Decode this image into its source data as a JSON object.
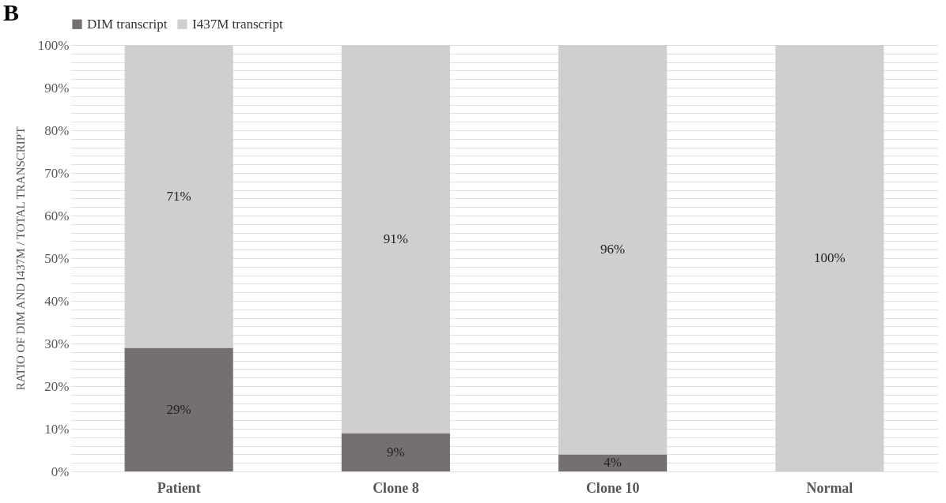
{
  "chart_data": {
    "type": "bar",
    "stacked": true,
    "ylabel": "RATIO OF DIM AND I437M / TOTAL TRANSCRIPT",
    "annotations": [
      "B"
    ],
    "categories": [
      "Patient",
      "Clone 8",
      "Clone 10",
      "Normal"
    ],
    "series": [
      {
        "name": "DIM transcript",
        "color": "#757070",
        "values": [
          29,
          9,
          4,
          0
        ],
        "value_labels": [
          "29%",
          "9%",
          "4%",
          null
        ]
      },
      {
        "name": "I437M transcript",
        "color": "#d0cece",
        "values": [
          71,
          91,
          96,
          100
        ],
        "value_labels": [
          "71%",
          "91%",
          "96%",
          "100%"
        ]
      }
    ],
    "ylim": [
      0,
      100
    ],
    "yticks": [
      {
        "value": 0,
        "label": "0%"
      },
      {
        "value": 2,
        "label": null
      },
      {
        "value": 4,
        "label": null
      },
      {
        "value": 6,
        "label": null
      },
      {
        "value": 8,
        "label": null
      },
      {
        "value": 10,
        "label": "10%"
      },
      {
        "value": 12,
        "label": null
      },
      {
        "value": 14,
        "label": null
      },
      {
        "value": 16,
        "label": null
      },
      {
        "value": 18,
        "label": null
      },
      {
        "value": 20,
        "label": "20%"
      },
      {
        "value": 22,
        "label": null
      },
      {
        "value": 24,
        "label": null
      },
      {
        "value": 26,
        "label": null
      },
      {
        "value": 28,
        "label": null
      },
      {
        "value": 30,
        "label": "30%"
      },
      {
        "value": 32,
        "label": null
      },
      {
        "value": 34,
        "label": null
      },
      {
        "value": 36,
        "label": null
      },
      {
        "value": 38,
        "label": null
      },
      {
        "value": 40,
        "label": "40%"
      },
      {
        "value": 42,
        "label": null
      },
      {
        "value": 44,
        "label": null
      },
      {
        "value": 46,
        "label": null
      },
      {
        "value": 48,
        "label": null
      },
      {
        "value": 50,
        "label": "50%"
      },
      {
        "value": 52,
        "label": null
      },
      {
        "value": 54,
        "label": null
      },
      {
        "value": 56,
        "label": null
      },
      {
        "value": 58,
        "label": null
      },
      {
        "value": 60,
        "label": "60%"
      },
      {
        "value": 62,
        "label": null
      },
      {
        "value": 64,
        "label": null
      },
      {
        "value": 66,
        "label": null
      },
      {
        "value": 68,
        "label": null
      },
      {
        "value": 70,
        "label": "70%"
      },
      {
        "value": 72,
        "label": null
      },
      {
        "value": 74,
        "label": null
      },
      {
        "value": 76,
        "label": null
      },
      {
        "value": 78,
        "label": null
      },
      {
        "value": 80,
        "label": "80%"
      },
      {
        "value": 82,
        "label": null
      },
      {
        "value": 84,
        "label": null
      },
      {
        "value": 86,
        "label": null
      },
      {
        "value": 88,
        "label": null
      },
      {
        "value": 90,
        "label": "90%"
      },
      {
        "value": 92,
        "label": null
      },
      {
        "value": 94,
        "label": null
      },
      {
        "value": 96,
        "label": null
      },
      {
        "value": 98,
        "label": null
      },
      {
        "value": 100,
        "label": "100%"
      }
    ],
    "grid": true,
    "legend": "top"
  }
}
